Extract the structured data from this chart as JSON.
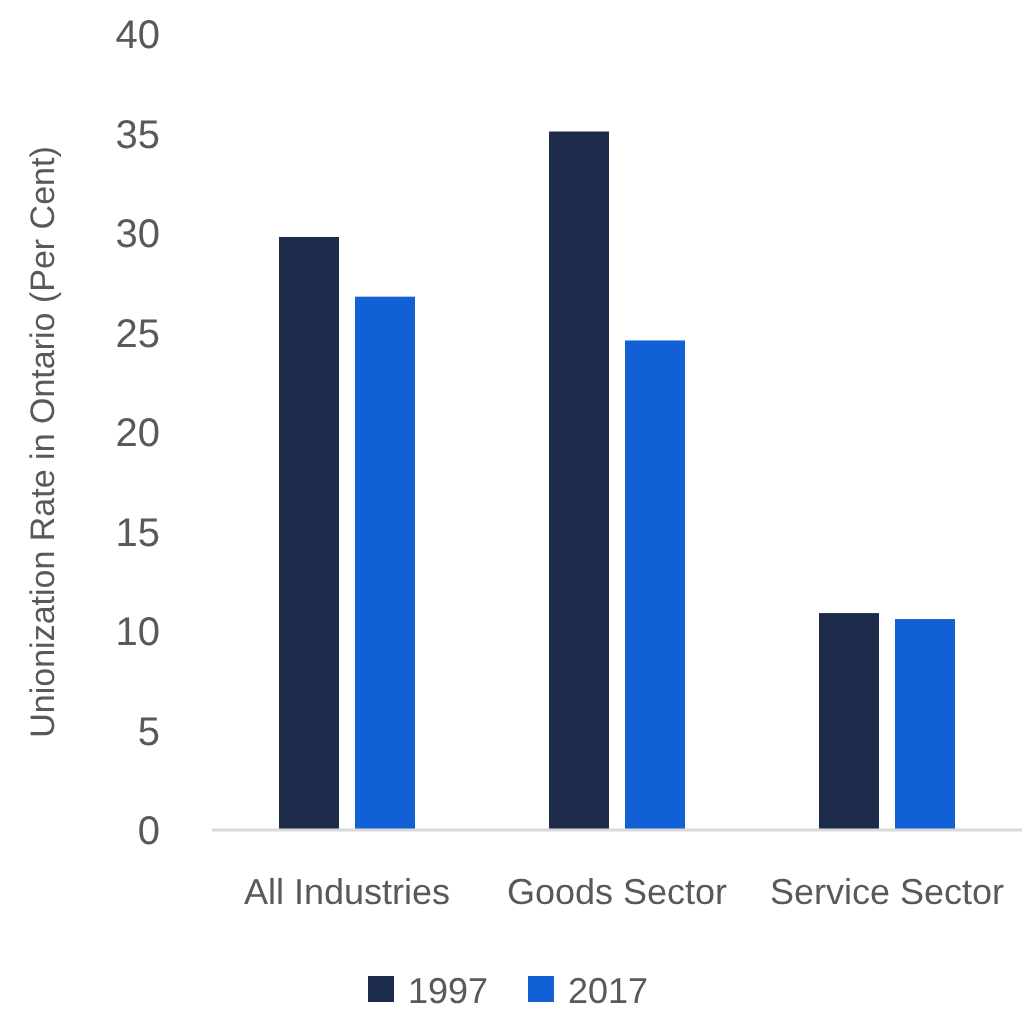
{
  "chart_data": {
    "type": "bar",
    "ylabel": "Unionization Rate in Ontario  (Per Cent)",
    "categories": [
      "All Industries",
      "Goods Sector",
      "Service Sector"
    ],
    "series": [
      {
        "name": "1997",
        "color": "#1c2b4a",
        "values": [
          29.8,
          35.1,
          10.9
        ]
      },
      {
        "name": "2017",
        "color": "#1160d6",
        "values": [
          26.8,
          24.6,
          10.6
        ]
      }
    ],
    "ylim": [
      0,
      40
    ],
    "yticks": [
      0,
      5,
      10,
      15,
      20,
      25,
      30,
      35,
      40
    ],
    "grid": false,
    "legend": "bottom"
  }
}
